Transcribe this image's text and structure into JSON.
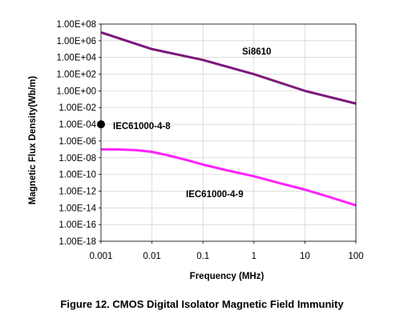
{
  "caption": "Figure 12.  CMOS Digital Isolator Magnetic Field Immunity",
  "chart_data": {
    "type": "line",
    "title": "",
    "xlabel": "Frequency (MHz)",
    "ylabel": "Magnetic Flux Density(Wb/m)",
    "xscale": "log",
    "yscale": "log",
    "xlim": [
      0.001,
      100
    ],
    "ylim": [
      1e-18,
      100000000.0
    ],
    "x_ticks": [
      0.001,
      0.01,
      0.1,
      1,
      10,
      100
    ],
    "x_tick_labels": [
      "0.001",
      "0.01",
      "0.1",
      "1",
      "10",
      "100"
    ],
    "y_ticks": [
      100000000.0,
      1000000.0,
      10000.0,
      100.0,
      1,
      0.01,
      0.0001,
      1e-06,
      1e-08,
      1e-10,
      1e-12,
      1e-14,
      1e-16,
      1e-18
    ],
    "y_tick_labels": [
      "1.00E+08",
      "1.00E+06",
      "1.00E+04",
      "1.00E+02",
      "1.00E+00",
      "1.00E-02",
      "1.00E-04",
      "1.00E-06",
      "1.00E-08",
      "1.00E-10",
      "1.00E-12",
      "1.00E-14",
      "1.00E-16",
      "1.00E-18"
    ],
    "grid": true,
    "series": [
      {
        "name": "Si8610",
        "color": "#7b1a7b",
        "x": [
          0.001,
          0.01,
          0.1,
          1,
          10,
          100
        ],
        "y": [
          10000000.0,
          100000.0,
          5000.0,
          100.0,
          1.0,
          0.03
        ]
      },
      {
        "name": "IEC61000-4-9",
        "color": "#ff22ff",
        "x": [
          0.001,
          0.002,
          0.005,
          0.01,
          0.02,
          0.05,
          0.1,
          0.3,
          1,
          3,
          10,
          30,
          100
        ],
        "y": [
          1e-07,
          1e-07,
          8e-08,
          5e-08,
          2e-08,
          5e-09,
          1.5e-09,
          3e-10,
          6e-11,
          1e-11,
          1.5e-12,
          2e-13,
          2e-14
        ]
      }
    ],
    "points": [
      {
        "name": "IEC61000-4-8",
        "x": 0.001,
        "y": 0.0001,
        "color": "#000000"
      }
    ]
  }
}
